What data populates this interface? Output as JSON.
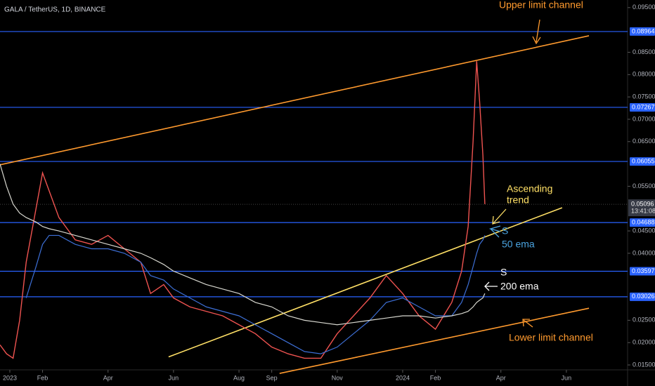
{
  "chart_data": {
    "type": "line",
    "title": "GALA / TetherUS, 1D, BINANCE",
    "x": [
      -0.3,
      -0.1,
      0.1,
      0.3,
      0.5,
      0.8,
      1.0,
      1.2,
      1.5,
      2.0,
      2.5,
      3.0,
      3.5,
      4.0,
      4.3,
      4.7,
      5.0,
      5.5,
      6.0,
      6.5,
      7.0,
      7.5,
      8.0,
      8.5,
      9.0,
      9.5,
      10.0,
      10.5,
      11.0,
      11.5,
      12.0,
      12.5,
      13.0,
      13.5,
      13.8,
      14.0,
      14.15,
      14.26,
      14.35,
      14.45,
      14.51
    ],
    "series": [
      {
        "color": "#ef5350",
        "values": [
          0.0195,
          0.0175,
          0.0165,
          0.025,
          0.038,
          0.05,
          0.058,
          0.054,
          0.048,
          0.043,
          0.042,
          0.044,
          0.041,
          0.038,
          0.031,
          0.033,
          0.03,
          0.028,
          0.027,
          0.026,
          0.024,
          0.022,
          0.019,
          0.0175,
          0.0165,
          0.0165,
          0.022,
          0.026,
          0.03,
          0.035,
          0.031,
          0.026,
          0.023,
          0.029,
          0.036,
          0.046,
          0.065,
          0.083,
          0.074,
          0.062,
          0.051
        ]
      },
      {
        "color": "#3d6fd6",
        "values": [
          null,
          null,
          null,
          null,
          0.03,
          0.037,
          0.042,
          0.044,
          0.044,
          0.042,
          0.041,
          0.041,
          0.04,
          0.038,
          0.035,
          0.034,
          0.032,
          0.03,
          0.028,
          0.027,
          0.026,
          0.024,
          0.022,
          0.02,
          0.018,
          0.0175,
          0.019,
          0.022,
          0.025,
          0.029,
          0.03,
          0.028,
          0.026,
          0.026,
          0.029,
          0.033,
          0.037,
          0.04,
          0.042,
          0.043,
          0.044
        ]
      },
      {
        "color": "#d8d8d0",
        "values": [
          0.06,
          0.055,
          0.051,
          0.049,
          0.048,
          0.047,
          0.046,
          0.0455,
          0.045,
          0.044,
          0.043,
          0.042,
          0.041,
          0.04,
          0.039,
          0.0375,
          0.036,
          0.0345,
          0.033,
          0.032,
          0.031,
          0.029,
          0.028,
          0.026,
          0.025,
          0.0245,
          0.024,
          0.0245,
          0.025,
          0.0255,
          0.026,
          0.026,
          0.0255,
          0.026,
          0.0265,
          0.027,
          0.028,
          0.029,
          0.0295,
          0.03,
          0.031
        ]
      }
    ],
    "xlim": [
      -0.3,
      18.87
    ],
    "xticks": [
      {
        "value": 0,
        "label": "2023"
      },
      {
        "value": 1,
        "label": "Feb"
      },
      {
        "value": 3,
        "label": "Apr"
      },
      {
        "value": 5,
        "label": "Jun"
      },
      {
        "value": 7,
        "label": "Aug"
      },
      {
        "value": 8,
        "label": "Sep"
      },
      {
        "value": 10,
        "label": "Nov"
      },
      {
        "value": 12,
        "label": "2024"
      },
      {
        "value": 13,
        "label": "Feb"
      },
      {
        "value": 15,
        "label": "Apr"
      },
      {
        "value": 17,
        "label": "Jun"
      }
    ],
    "ylim": [
      0.0139,
      0.0967
    ],
    "yticks": [
      {
        "value": 0.095,
        "label": "0.09500"
      },
      {
        "value": 0.085,
        "label": "0.08500"
      },
      {
        "value": 0.08,
        "label": "0.08000"
      },
      {
        "value": 0.075,
        "label": "0.07500"
      },
      {
        "value": 0.07,
        "label": "0.07000"
      },
      {
        "value": 0.065,
        "label": "0.06500"
      },
      {
        "value": 0.055,
        "label": "0.05500"
      },
      {
        "value": 0.045,
        "label": "0.04500"
      },
      {
        "value": 0.04,
        "label": "0.04000"
      },
      {
        "value": 0.025,
        "label": "0.02500"
      },
      {
        "value": 0.02,
        "label": "0.02000"
      },
      {
        "value": 0.015,
        "label": "0.01500"
      }
    ],
    "levels": [
      0.08964,
      0.07267,
      0.06055,
      0.04688,
      0.03597,
      0.03026
    ],
    "level_color": "#2962ff",
    "last_price": 0.05096,
    "countdown": "13:41:08",
    "trend_lines": [
      {
        "color": "#ff9a2e",
        "x": [
          -0.3,
          17.69
        ],
        "values": [
          0.0598,
          0.0887
        ]
      },
      {
        "color": "#ffe066",
        "x": [
          4.85,
          16.87
        ],
        "values": [
          0.0168,
          0.0502
        ]
      },
      {
        "color": "#ff9a2e",
        "x": [
          8.24,
          17.69
        ],
        "values": [
          0.0131,
          0.0277
        ]
      }
    ],
    "annotations": [
      {
        "text": "Upper limit channel",
        "color": "#ff9a2e"
      },
      {
        "text": "Ascending",
        "color": "#ffe066"
      },
      {
        "text": "trend",
        "color": "#ffe066"
      },
      {
        "text": "S",
        "color": "#4aa3df"
      },
      {
        "text": "50 ema",
        "color": "#4aa3df"
      },
      {
        "text": "S",
        "color": "#ffffff"
      },
      {
        "text": "200 ema",
        "color": "#ffffff"
      },
      {
        "text": "Lower limit channel",
        "color": "#ff9a2e"
      }
    ]
  }
}
